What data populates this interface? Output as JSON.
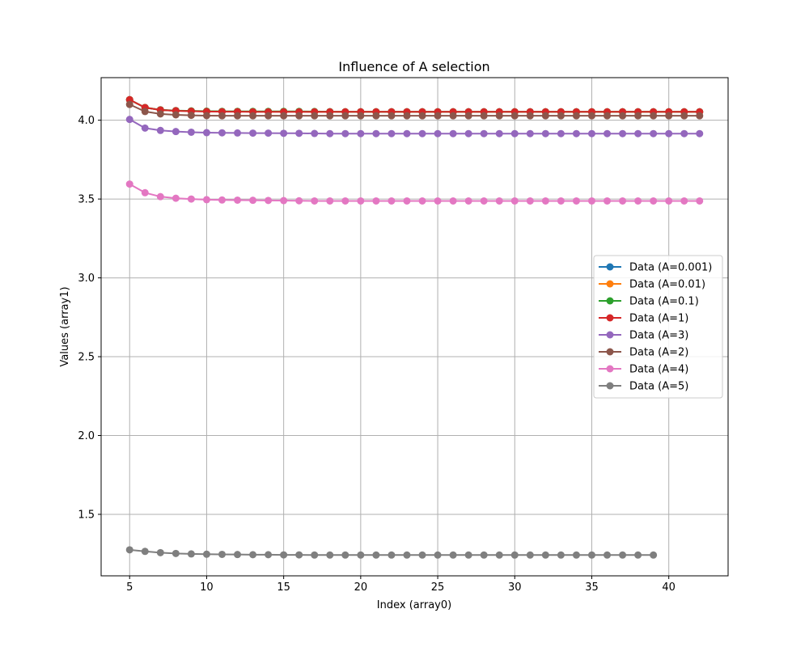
{
  "chart_data": {
    "type": "line",
    "title": "Influence of A selection",
    "xlabel": "Index (array0)",
    "ylabel": "Values (array1)",
    "xlim": [
      3.15,
      43.85
    ],
    "ylim": [
      1.11,
      4.27
    ],
    "xticks": [
      5,
      10,
      15,
      20,
      25,
      30,
      35,
      40
    ],
    "yticks": [
      1.5,
      2.0,
      2.5,
      3.0,
      3.5,
      4.0
    ],
    "xtick_labels": [
      "5",
      "10",
      "15",
      "20",
      "25",
      "30",
      "35",
      "40"
    ],
    "ytick_labels": [
      "1.5",
      "2.0",
      "2.5",
      "3.0",
      "3.5",
      "4.0"
    ],
    "grid": true,
    "legend_position": "center-right",
    "series": [
      {
        "name": "Data (A=0.001)",
        "color": "#1f77b4",
        "x": [
          5,
          6,
          7,
          8,
          9,
          10,
          11,
          12,
          13,
          14,
          15,
          16,
          17,
          18,
          19,
          20,
          21,
          22,
          23,
          24,
          25,
          26,
          27,
          28,
          29,
          30,
          31,
          32,
          33,
          34,
          35,
          36,
          37,
          38,
          39,
          40,
          41,
          42
        ],
        "y": [
          4.13,
          4.08,
          4.065,
          4.06,
          4.058,
          4.056,
          4.055,
          4.055,
          4.054,
          4.054,
          4.054,
          4.054,
          4.053,
          4.053,
          4.053,
          4.053,
          4.053,
          4.053,
          4.053,
          4.053,
          4.053,
          4.053,
          4.053,
          4.053,
          4.053,
          4.053,
          4.053,
          4.053,
          4.053,
          4.053,
          4.053,
          4.053,
          4.053,
          4.053,
          4.053,
          4.053,
          4.053,
          4.053
        ]
      },
      {
        "name": "Data (A=0.01)",
        "color": "#ff7f0e",
        "x": [
          5,
          6,
          7,
          8,
          9,
          10,
          11,
          12,
          13,
          14,
          15,
          16,
          17,
          18,
          19,
          20,
          21,
          22,
          23,
          24,
          25,
          26,
          27,
          28,
          29,
          30,
          31,
          32,
          33,
          34,
          35,
          36,
          37,
          38,
          39,
          40,
          41,
          42
        ],
        "y": [
          4.13,
          4.08,
          4.065,
          4.06,
          4.058,
          4.056,
          4.055,
          4.055,
          4.054,
          4.054,
          4.054,
          4.054,
          4.053,
          4.053,
          4.053,
          4.053,
          4.053,
          4.053,
          4.053,
          4.053,
          4.053,
          4.053,
          4.053,
          4.053,
          4.053,
          4.053,
          4.053,
          4.053,
          4.053,
          4.053,
          4.053,
          4.053,
          4.053,
          4.053,
          4.053,
          4.053,
          4.053,
          4.053
        ]
      },
      {
        "name": "Data (A=0.1)",
        "color": "#2ca02c",
        "x": [
          5,
          6,
          7,
          8,
          9,
          10,
          11,
          12,
          13,
          14,
          15,
          16,
          17,
          18,
          19,
          20,
          21,
          22,
          23,
          24,
          25,
          26,
          27,
          28,
          29,
          30,
          31,
          32,
          33,
          34,
          35,
          36,
          37,
          38,
          39,
          40,
          41,
          42
        ],
        "y": [
          4.13,
          4.08,
          4.066,
          4.061,
          4.059,
          4.057,
          4.056,
          4.056,
          4.056,
          4.056,
          4.056,
          4.056,
          4.055,
          4.054,
          4.053,
          4.053,
          4.053,
          4.053,
          4.053,
          4.053,
          4.053,
          4.053,
          4.053,
          4.053,
          4.053,
          4.053,
          4.053,
          4.053,
          4.053,
          4.053,
          4.053,
          4.053,
          4.053,
          4.053,
          4.053,
          4.053,
          4.053,
          4.053
        ]
      },
      {
        "name": "Data (A=1)",
        "color": "#d62728",
        "x": [
          5,
          6,
          7,
          8,
          9,
          10,
          11,
          12,
          13,
          14,
          15,
          16,
          17,
          18,
          19,
          20,
          21,
          22,
          23,
          24,
          25,
          26,
          27,
          28,
          29,
          30,
          31,
          32,
          33,
          34,
          35,
          36,
          37,
          38,
          39,
          40,
          41,
          42
        ],
        "y": [
          4.13,
          4.08,
          4.065,
          4.06,
          4.057,
          4.055,
          4.054,
          4.054,
          4.053,
          4.053,
          4.053,
          4.053,
          4.053,
          4.053,
          4.053,
          4.053,
          4.053,
          4.053,
          4.053,
          4.053,
          4.053,
          4.053,
          4.053,
          4.053,
          4.053,
          4.053,
          4.053,
          4.053,
          4.053,
          4.053,
          4.053,
          4.053,
          4.053,
          4.053,
          4.053,
          4.053,
          4.053,
          4.053
        ]
      },
      {
        "name": "Data (A=3)",
        "color": "#9467bd",
        "x": [
          5,
          6,
          7,
          8,
          9,
          10,
          11,
          12,
          13,
          14,
          15,
          16,
          17,
          18,
          19,
          20,
          21,
          22,
          23,
          24,
          25,
          26,
          27,
          28,
          29,
          30,
          31,
          32,
          33,
          34,
          35,
          36,
          37,
          38,
          39,
          40,
          41,
          42
        ],
        "y": [
          4.005,
          3.95,
          3.935,
          3.928,
          3.924,
          3.921,
          3.92,
          3.919,
          3.918,
          3.918,
          3.917,
          3.917,
          3.916,
          3.915,
          3.915,
          3.915,
          3.915,
          3.915,
          3.915,
          3.915,
          3.915,
          3.915,
          3.915,
          3.915,
          3.915,
          3.915,
          3.915,
          3.915,
          3.915,
          3.915,
          3.915,
          3.915,
          3.915,
          3.915,
          3.915,
          3.915,
          3.915,
          3.915
        ]
      },
      {
        "name": "Data (A=2)",
        "color": "#8c564b",
        "x": [
          5,
          6,
          7,
          8,
          9,
          10,
          11,
          12,
          13,
          14,
          15,
          16,
          17,
          18,
          19,
          20,
          21,
          22,
          23,
          24,
          25,
          26,
          27,
          28,
          29,
          30,
          31,
          32,
          33,
          34,
          35,
          36,
          37,
          38,
          39,
          40,
          41,
          42
        ],
        "y": [
          4.1,
          4.055,
          4.04,
          4.034,
          4.031,
          4.029,
          4.028,
          4.028,
          4.028,
          4.028,
          4.028,
          4.028,
          4.028,
          4.028,
          4.028,
          4.028,
          4.028,
          4.028,
          4.028,
          4.028,
          4.028,
          4.028,
          4.028,
          4.028,
          4.028,
          4.028,
          4.028,
          4.028,
          4.028,
          4.028,
          4.028,
          4.028,
          4.028,
          4.028,
          4.028,
          4.028,
          4.028,
          4.028
        ]
      },
      {
        "name": "Data (A=4)",
        "color": "#e377c2",
        "x": [
          5,
          6,
          7,
          8,
          9,
          10,
          11,
          12,
          13,
          14,
          15,
          16,
          17,
          18,
          19,
          20,
          21,
          22,
          23,
          24,
          25,
          26,
          27,
          28,
          29,
          30,
          31,
          32,
          33,
          34,
          35,
          36,
          37,
          38,
          39,
          40,
          41,
          42
        ],
        "y": [
          3.595,
          3.54,
          3.515,
          3.505,
          3.5,
          3.496,
          3.494,
          3.493,
          3.492,
          3.491,
          3.49,
          3.489,
          3.488,
          3.488,
          3.488,
          3.488,
          3.488,
          3.488,
          3.488,
          3.488,
          3.488,
          3.488,
          3.488,
          3.488,
          3.488,
          3.488,
          3.488,
          3.488,
          3.488,
          3.488,
          3.488,
          3.488,
          3.488,
          3.488,
          3.488,
          3.488,
          3.488,
          3.488
        ]
      },
      {
        "name": "Data (A=5)",
        "color": "#7f7f7f",
        "x": [
          5,
          6,
          7,
          8,
          9,
          10,
          11,
          12,
          13,
          14,
          15,
          16,
          17,
          18,
          19,
          20,
          21,
          22,
          23,
          24,
          25,
          26,
          27,
          28,
          29,
          30,
          31,
          32,
          33,
          34,
          35,
          36,
          37,
          38,
          39
        ],
        "y": [
          1.275,
          1.265,
          1.257,
          1.252,
          1.249,
          1.247,
          1.246,
          1.245,
          1.244,
          1.244,
          1.243,
          1.243,
          1.242,
          1.242,
          1.242,
          1.242,
          1.242,
          1.242,
          1.242,
          1.242,
          1.242,
          1.242,
          1.242,
          1.242,
          1.242,
          1.242,
          1.242,
          1.242,
          1.242,
          1.242,
          1.242,
          1.242,
          1.242,
          1.242,
          1.242
        ]
      }
    ]
  }
}
